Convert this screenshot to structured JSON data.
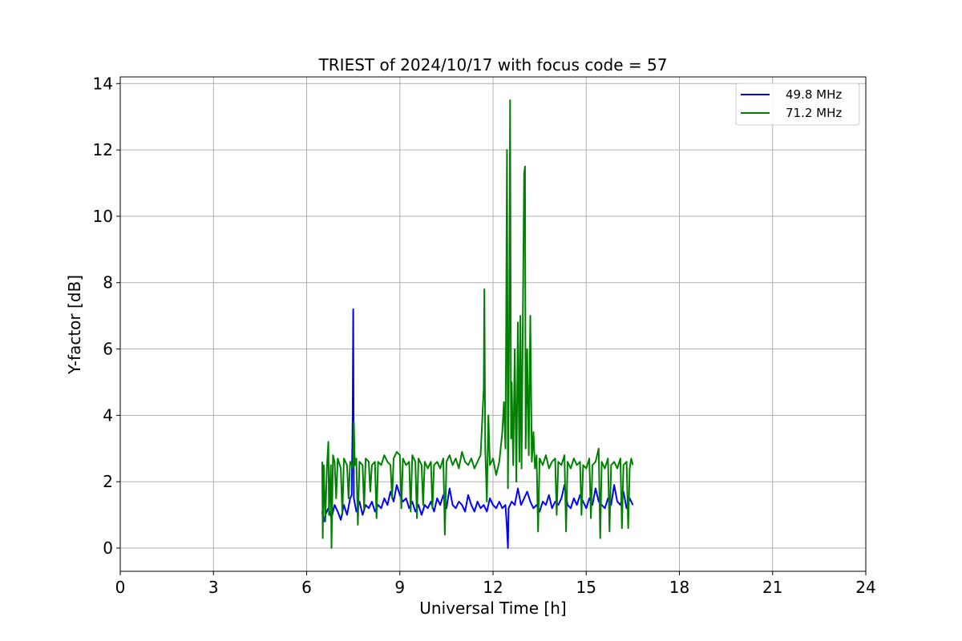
{
  "chart_data": {
    "type": "line",
    "title": "TRIEST of 2024/10/17 with focus code = 57",
    "xlabel": "Universal Time [h]",
    "ylabel": "Y-factor [dB]",
    "xlim": [
      0,
      24
    ],
    "ylim": [
      -0.7,
      14.2
    ],
    "xticks": [
      0,
      3,
      6,
      9,
      12,
      15,
      18,
      21,
      24
    ],
    "yticks": [
      0,
      2,
      4,
      6,
      8,
      10,
      12,
      14
    ],
    "grid": true,
    "legend_position": "top-right",
    "series": [
      {
        "name": "49.8 MHz",
        "color": "#0000ff",
        "points": [
          [
            6.5,
            1.1
          ],
          [
            6.55,
            0.8
          ],
          [
            6.6,
            1.0
          ],
          [
            6.7,
            1.2
          ],
          [
            6.8,
            0.9
          ],
          [
            6.9,
            1.3
          ],
          [
            7.0,
            1.1
          ],
          [
            7.1,
            0.85
          ],
          [
            7.2,
            1.3
          ],
          [
            7.3,
            1.0
          ],
          [
            7.4,
            1.5
          ],
          [
            7.45,
            1.6
          ],
          [
            7.48,
            3.9
          ],
          [
            7.5,
            7.2
          ],
          [
            7.52,
            1.5
          ],
          [
            7.6,
            1.1
          ],
          [
            7.7,
            1.4
          ],
          [
            7.8,
            1.0
          ],
          [
            7.9,
            1.3
          ],
          [
            8.0,
            1.2
          ],
          [
            8.1,
            1.4
          ],
          [
            8.2,
            1.1
          ],
          [
            8.3,
            1.3
          ],
          [
            8.4,
            1.2
          ],
          [
            8.5,
            1.5
          ],
          [
            8.6,
            1.3
          ],
          [
            8.7,
            1.7
          ],
          [
            8.8,
            1.4
          ],
          [
            8.9,
            1.9
          ],
          [
            9.0,
            1.6
          ],
          [
            9.1,
            1.4
          ],
          [
            9.2,
            1.5
          ],
          [
            9.3,
            1.2
          ],
          [
            9.4,
            1.4
          ],
          [
            9.5,
            1.1
          ],
          [
            9.6,
            1.3
          ],
          [
            9.7,
            1.0
          ],
          [
            9.8,
            1.3
          ],
          [
            9.9,
            1.2
          ],
          [
            10.0,
            1.4
          ],
          [
            10.1,
            1.1
          ],
          [
            10.2,
            1.5
          ],
          [
            10.3,
            1.3
          ],
          [
            10.4,
            1.6
          ],
          [
            10.5,
            1.2
          ],
          [
            10.6,
            1.8
          ],
          [
            10.7,
            1.3
          ],
          [
            10.8,
            1.2
          ],
          [
            10.9,
            1.4
          ],
          [
            11.0,
            1.3
          ],
          [
            11.1,
            1.1
          ],
          [
            11.2,
            1.6
          ],
          [
            11.3,
            1.3
          ],
          [
            11.4,
            1.1
          ],
          [
            11.5,
            1.4
          ],
          [
            11.6,
            1.2
          ],
          [
            11.7,
            1.3
          ],
          [
            11.8,
            1.1
          ],
          [
            11.9,
            1.5
          ],
          [
            12.0,
            1.3
          ],
          [
            12.1,
            1.2
          ],
          [
            12.2,
            1.4
          ],
          [
            12.3,
            1.2
          ],
          [
            12.4,
            1.3
          ],
          [
            12.45,
            0.6
          ],
          [
            12.48,
            0.0
          ],
          [
            12.5,
            1.2
          ],
          [
            12.6,
            1.4
          ],
          [
            12.7,
            1.3
          ],
          [
            12.8,
            1.8
          ],
          [
            12.9,
            1.3
          ],
          [
            13.0,
            1.5
          ],
          [
            13.1,
            1.7
          ],
          [
            13.2,
            1.4
          ],
          [
            13.3,
            1.2
          ],
          [
            13.4,
            1.3
          ],
          [
            13.5,
            1.1
          ],
          [
            13.6,
            1.4
          ],
          [
            13.7,
            1.3
          ],
          [
            13.8,
            1.6
          ],
          [
            13.9,
            1.2
          ],
          [
            14.0,
            1.4
          ],
          [
            14.1,
            1.3
          ],
          [
            14.2,
            1.5
          ],
          [
            14.3,
            1.9
          ],
          [
            14.4,
            1.3
          ],
          [
            14.5,
            1.2
          ],
          [
            14.6,
            1.5
          ],
          [
            14.7,
            1.3
          ],
          [
            14.8,
            1.6
          ],
          [
            14.9,
            1.4
          ],
          [
            15.0,
            1.2
          ],
          [
            15.1,
            1.5
          ],
          [
            15.2,
            1.3
          ],
          [
            15.3,
            1.8
          ],
          [
            15.4,
            1.4
          ],
          [
            15.5,
            1.3
          ],
          [
            15.6,
            1.2
          ],
          [
            15.7,
            1.5
          ],
          [
            15.8,
            1.3
          ],
          [
            15.9,
            1.9
          ],
          [
            16.0,
            1.4
          ],
          [
            16.1,
            1.3
          ],
          [
            16.2,
            1.7
          ],
          [
            16.3,
            1.2
          ],
          [
            16.4,
            1.5
          ],
          [
            16.5,
            1.3
          ]
        ]
      },
      {
        "name": "71.2 MHz",
        "color": "#008000",
        "points": [
          [
            6.5,
            2.6
          ],
          [
            6.52,
            0.3
          ],
          [
            6.55,
            2.5
          ],
          [
            6.6,
            0.8
          ],
          [
            6.65,
            2.4
          ],
          [
            6.7,
            3.2
          ],
          [
            6.72,
            1.0
          ],
          [
            6.78,
            2.5
          ],
          [
            6.8,
            0.0
          ],
          [
            6.85,
            2.8
          ],
          [
            6.9,
            2.6
          ],
          [
            6.95,
            1.5
          ],
          [
            7.0,
            2.7
          ],
          [
            7.1,
            2.4
          ],
          [
            7.15,
            1.0
          ],
          [
            7.2,
            2.7
          ],
          [
            7.3,
            2.5
          ],
          [
            7.35,
            1.5
          ],
          [
            7.4,
            2.6
          ],
          [
            7.5,
            2.4
          ],
          [
            7.52,
            3.8
          ],
          [
            7.55,
            2.5
          ],
          [
            7.6,
            2.7
          ],
          [
            7.65,
            0.7
          ],
          [
            7.7,
            2.6
          ],
          [
            7.8,
            2.5
          ],
          [
            7.85,
            1.2
          ],
          [
            7.9,
            2.7
          ],
          [
            8.0,
            2.6
          ],
          [
            8.05,
            1.7
          ],
          [
            8.1,
            2.5
          ],
          [
            8.2,
            2.6
          ],
          [
            8.25,
            0.9
          ],
          [
            8.3,
            2.6
          ],
          [
            8.4,
            2.5
          ],
          [
            8.5,
            2.8
          ],
          [
            8.6,
            2.6
          ],
          [
            8.7,
            2.5
          ],
          [
            8.75,
            1.5
          ],
          [
            8.8,
            2.7
          ],
          [
            8.9,
            2.9
          ],
          [
            9.0,
            2.8
          ],
          [
            9.05,
            1.2
          ],
          [
            9.1,
            2.7
          ],
          [
            9.2,
            2.5
          ],
          [
            9.3,
            2.6
          ],
          [
            9.35,
            1.1
          ],
          [
            9.4,
            2.8
          ],
          [
            9.5,
            2.6
          ],
          [
            9.55,
            0.9
          ],
          [
            9.6,
            2.7
          ],
          [
            9.7,
            2.5
          ],
          [
            9.75,
            1.3
          ],
          [
            9.8,
            2.6
          ],
          [
            9.9,
            2.4
          ],
          [
            10.0,
            2.6
          ],
          [
            10.05,
            1.2
          ],
          [
            10.1,
            2.5
          ],
          [
            10.2,
            2.6
          ],
          [
            10.3,
            2.4
          ],
          [
            10.4,
            2.7
          ],
          [
            10.45,
            0.4
          ],
          [
            10.5,
            2.6
          ],
          [
            10.6,
            2.8
          ],
          [
            10.7,
            2.5
          ],
          [
            10.8,
            2.7
          ],
          [
            10.9,
            2.4
          ],
          [
            11.0,
            2.9
          ],
          [
            11.1,
            2.6
          ],
          [
            11.2,
            2.5
          ],
          [
            11.3,
            2.7
          ],
          [
            11.4,
            2.4
          ],
          [
            11.5,
            2.6
          ],
          [
            11.6,
            2.8
          ],
          [
            11.7,
            4.8
          ],
          [
            11.72,
            7.8
          ],
          [
            11.75,
            3.0
          ],
          [
            11.8,
            1.4
          ],
          [
            11.85,
            4.0
          ],
          [
            11.9,
            2.5
          ],
          [
            12.0,
            2.7
          ],
          [
            12.1,
            2.2
          ],
          [
            12.2,
            2.6
          ],
          [
            12.3,
            3.5
          ],
          [
            12.35,
            4.4
          ],
          [
            12.4,
            3.0
          ],
          [
            12.42,
            6.4
          ],
          [
            12.45,
            12.0
          ],
          [
            12.48,
            1.8
          ],
          [
            12.52,
            6.5
          ],
          [
            12.55,
            13.5
          ],
          [
            12.58,
            3.3
          ],
          [
            12.6,
            5.0
          ],
          [
            12.65,
            2.5
          ],
          [
            12.7,
            6.0
          ],
          [
            12.75,
            2.0
          ],
          [
            12.8,
            6.8
          ],
          [
            12.85,
            2.6
          ],
          [
            12.88,
            7.0
          ],
          [
            12.92,
            2.4
          ],
          [
            12.95,
            5.8
          ],
          [
            13.0,
            11.3
          ],
          [
            13.03,
            11.5
          ],
          [
            13.05,
            3.0
          ],
          [
            13.1,
            6.0
          ],
          [
            13.15,
            2.8
          ],
          [
            13.2,
            7.0
          ],
          [
            13.25,
            2.6
          ],
          [
            13.3,
            3.5
          ],
          [
            13.35,
            2.4
          ],
          [
            13.4,
            2.8
          ],
          [
            13.45,
            0.5
          ],
          [
            13.5,
            2.7
          ],
          [
            13.6,
            2.5
          ],
          [
            13.7,
            2.8
          ],
          [
            13.8,
            2.4
          ],
          [
            13.9,
            2.6
          ],
          [
            14.0,
            2.7
          ],
          [
            14.05,
            1.0
          ],
          [
            14.1,
            2.6
          ],
          [
            14.2,
            2.5
          ],
          [
            14.3,
            2.8
          ],
          [
            14.35,
            0.5
          ],
          [
            14.4,
            2.6
          ],
          [
            14.5,
            2.4
          ],
          [
            14.6,
            2.7
          ],
          [
            14.7,
            2.5
          ],
          [
            14.8,
            2.6
          ],
          [
            14.85,
            1.0
          ],
          [
            14.9,
            2.5
          ],
          [
            15.0,
            2.4
          ],
          [
            15.1,
            2.7
          ],
          [
            15.15,
            0.9
          ],
          [
            15.2,
            2.5
          ],
          [
            15.3,
            2.6
          ],
          [
            15.4,
            3.0
          ],
          [
            15.45,
            0.3
          ],
          [
            15.5,
            2.6
          ],
          [
            15.6,
            2.4
          ],
          [
            15.7,
            2.7
          ],
          [
            15.75,
            0.5
          ],
          [
            15.8,
            2.5
          ],
          [
            15.9,
            2.6
          ],
          [
            16.0,
            2.4
          ],
          [
            16.1,
            2.7
          ],
          [
            16.15,
            0.6
          ],
          [
            16.2,
            2.5
          ],
          [
            16.3,
            2.6
          ],
          [
            16.35,
            0.6
          ],
          [
            16.4,
            2.4
          ],
          [
            16.45,
            2.7
          ],
          [
            16.5,
            2.5
          ]
        ]
      }
    ]
  }
}
